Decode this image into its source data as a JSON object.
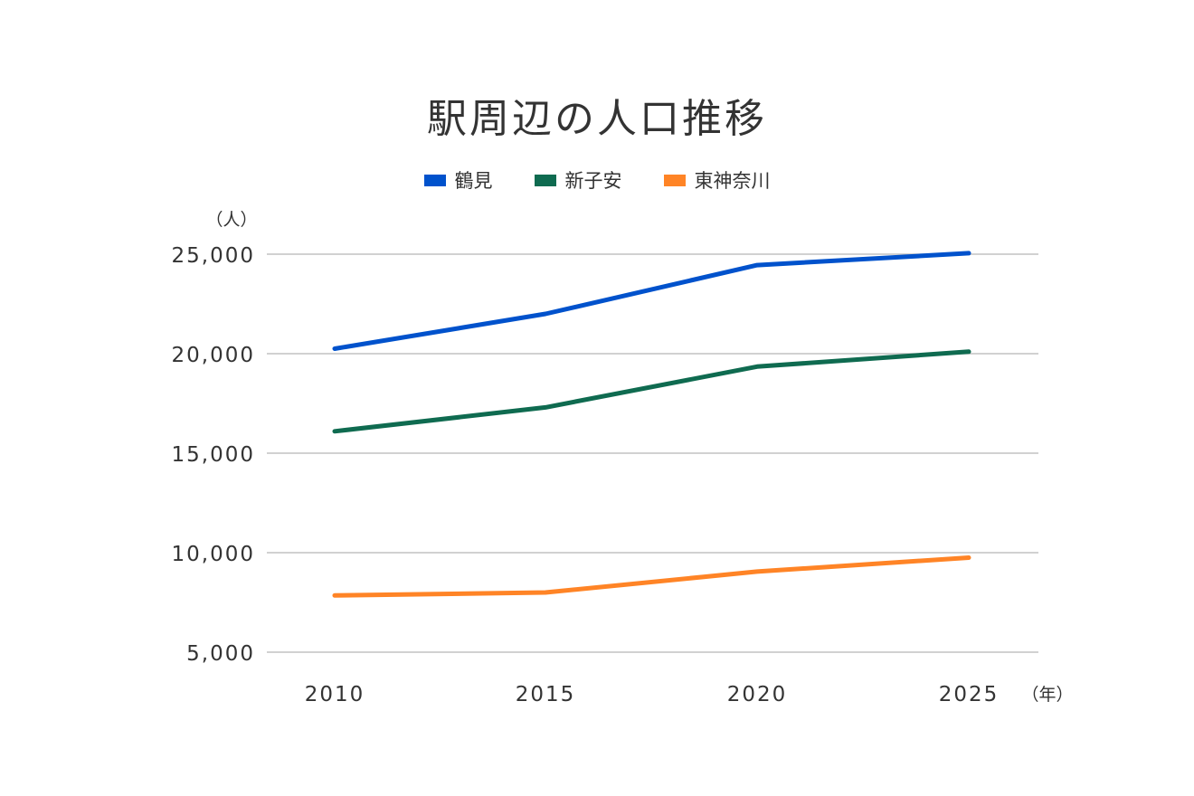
{
  "chart_data": {
    "type": "line",
    "title": "駅周辺の人口推移",
    "y_unit": "（人）",
    "x_unit": "（年）",
    "categories": [
      "2010",
      "2015",
      "2020",
      "2025"
    ],
    "ylim": [
      5000,
      25000
    ],
    "yticks": [
      5000,
      10000,
      15000,
      20000,
      25000
    ],
    "ytick_labels": [
      "5,000",
      "10,000",
      "15,000",
      "20,000",
      "25,000"
    ],
    "grid": true,
    "legend_position": "top-center",
    "series": [
      {
        "name": "鶴見",
        "color": "#0052CC",
        "values": [
          20250,
          22000,
          24450,
          25050
        ]
      },
      {
        "name": "新子安",
        "color": "#0F6B50",
        "values": [
          16100,
          17300,
          19350,
          20100
        ]
      },
      {
        "name": "東神奈川",
        "color": "#FF8426",
        "values": [
          7850,
          8000,
          9050,
          9750
        ]
      }
    ]
  }
}
